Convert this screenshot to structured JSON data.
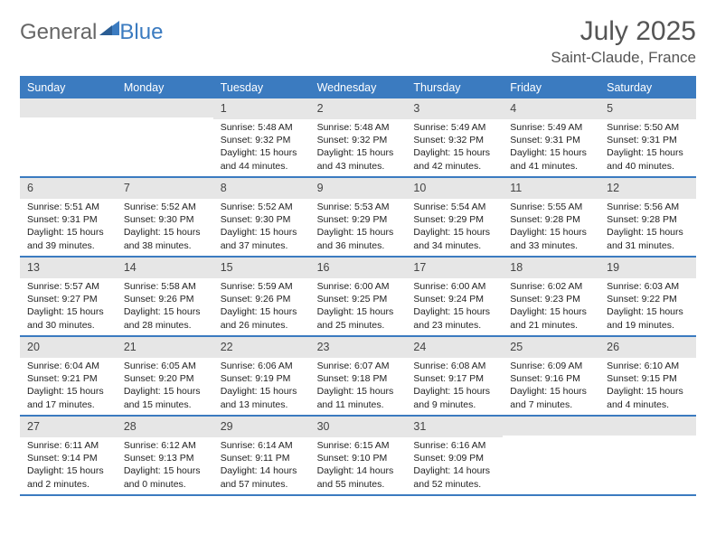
{
  "brand": {
    "word1": "General",
    "word2": "Blue"
  },
  "title": "July 2025",
  "location": "Saint-Claude, France",
  "header_bg": "#3b7bc0",
  "weekdays": [
    "Sunday",
    "Monday",
    "Tuesday",
    "Wednesday",
    "Thursday",
    "Friday",
    "Saturday"
  ],
  "weeks": [
    [
      {
        "n": "",
        "lines": [
          "",
          "",
          "",
          ""
        ]
      },
      {
        "n": "",
        "lines": [
          "",
          "",
          "",
          ""
        ]
      },
      {
        "n": "1",
        "lines": [
          "Sunrise: 5:48 AM",
          "Sunset: 9:32 PM",
          "Daylight: 15 hours",
          "and 44 minutes."
        ]
      },
      {
        "n": "2",
        "lines": [
          "Sunrise: 5:48 AM",
          "Sunset: 9:32 PM",
          "Daylight: 15 hours",
          "and 43 minutes."
        ]
      },
      {
        "n": "3",
        "lines": [
          "Sunrise: 5:49 AM",
          "Sunset: 9:32 PM",
          "Daylight: 15 hours",
          "and 42 minutes."
        ]
      },
      {
        "n": "4",
        "lines": [
          "Sunrise: 5:49 AM",
          "Sunset: 9:31 PM",
          "Daylight: 15 hours",
          "and 41 minutes."
        ]
      },
      {
        "n": "5",
        "lines": [
          "Sunrise: 5:50 AM",
          "Sunset: 9:31 PM",
          "Daylight: 15 hours",
          "and 40 minutes."
        ]
      }
    ],
    [
      {
        "n": "6",
        "lines": [
          "Sunrise: 5:51 AM",
          "Sunset: 9:31 PM",
          "Daylight: 15 hours",
          "and 39 minutes."
        ]
      },
      {
        "n": "7",
        "lines": [
          "Sunrise: 5:52 AM",
          "Sunset: 9:30 PM",
          "Daylight: 15 hours",
          "and 38 minutes."
        ]
      },
      {
        "n": "8",
        "lines": [
          "Sunrise: 5:52 AM",
          "Sunset: 9:30 PM",
          "Daylight: 15 hours",
          "and 37 minutes."
        ]
      },
      {
        "n": "9",
        "lines": [
          "Sunrise: 5:53 AM",
          "Sunset: 9:29 PM",
          "Daylight: 15 hours",
          "and 36 minutes."
        ]
      },
      {
        "n": "10",
        "lines": [
          "Sunrise: 5:54 AM",
          "Sunset: 9:29 PM",
          "Daylight: 15 hours",
          "and 34 minutes."
        ]
      },
      {
        "n": "11",
        "lines": [
          "Sunrise: 5:55 AM",
          "Sunset: 9:28 PM",
          "Daylight: 15 hours",
          "and 33 minutes."
        ]
      },
      {
        "n": "12",
        "lines": [
          "Sunrise: 5:56 AM",
          "Sunset: 9:28 PM",
          "Daylight: 15 hours",
          "and 31 minutes."
        ]
      }
    ],
    [
      {
        "n": "13",
        "lines": [
          "Sunrise: 5:57 AM",
          "Sunset: 9:27 PM",
          "Daylight: 15 hours",
          "and 30 minutes."
        ]
      },
      {
        "n": "14",
        "lines": [
          "Sunrise: 5:58 AM",
          "Sunset: 9:26 PM",
          "Daylight: 15 hours",
          "and 28 minutes."
        ]
      },
      {
        "n": "15",
        "lines": [
          "Sunrise: 5:59 AM",
          "Sunset: 9:26 PM",
          "Daylight: 15 hours",
          "and 26 minutes."
        ]
      },
      {
        "n": "16",
        "lines": [
          "Sunrise: 6:00 AM",
          "Sunset: 9:25 PM",
          "Daylight: 15 hours",
          "and 25 minutes."
        ]
      },
      {
        "n": "17",
        "lines": [
          "Sunrise: 6:00 AM",
          "Sunset: 9:24 PM",
          "Daylight: 15 hours",
          "and 23 minutes."
        ]
      },
      {
        "n": "18",
        "lines": [
          "Sunrise: 6:02 AM",
          "Sunset: 9:23 PM",
          "Daylight: 15 hours",
          "and 21 minutes."
        ]
      },
      {
        "n": "19",
        "lines": [
          "Sunrise: 6:03 AM",
          "Sunset: 9:22 PM",
          "Daylight: 15 hours",
          "and 19 minutes."
        ]
      }
    ],
    [
      {
        "n": "20",
        "lines": [
          "Sunrise: 6:04 AM",
          "Sunset: 9:21 PM",
          "Daylight: 15 hours",
          "and 17 minutes."
        ]
      },
      {
        "n": "21",
        "lines": [
          "Sunrise: 6:05 AM",
          "Sunset: 9:20 PM",
          "Daylight: 15 hours",
          "and 15 minutes."
        ]
      },
      {
        "n": "22",
        "lines": [
          "Sunrise: 6:06 AM",
          "Sunset: 9:19 PM",
          "Daylight: 15 hours",
          "and 13 minutes."
        ]
      },
      {
        "n": "23",
        "lines": [
          "Sunrise: 6:07 AM",
          "Sunset: 9:18 PM",
          "Daylight: 15 hours",
          "and 11 minutes."
        ]
      },
      {
        "n": "24",
        "lines": [
          "Sunrise: 6:08 AM",
          "Sunset: 9:17 PM",
          "Daylight: 15 hours",
          "and 9 minutes."
        ]
      },
      {
        "n": "25",
        "lines": [
          "Sunrise: 6:09 AM",
          "Sunset: 9:16 PM",
          "Daylight: 15 hours",
          "and 7 minutes."
        ]
      },
      {
        "n": "26",
        "lines": [
          "Sunrise: 6:10 AM",
          "Sunset: 9:15 PM",
          "Daylight: 15 hours",
          "and 4 minutes."
        ]
      }
    ],
    [
      {
        "n": "27",
        "lines": [
          "Sunrise: 6:11 AM",
          "Sunset: 9:14 PM",
          "Daylight: 15 hours",
          "and 2 minutes."
        ]
      },
      {
        "n": "28",
        "lines": [
          "Sunrise: 6:12 AM",
          "Sunset: 9:13 PM",
          "Daylight: 15 hours",
          "and 0 minutes."
        ]
      },
      {
        "n": "29",
        "lines": [
          "Sunrise: 6:14 AM",
          "Sunset: 9:11 PM",
          "Daylight: 14 hours",
          "and 57 minutes."
        ]
      },
      {
        "n": "30",
        "lines": [
          "Sunrise: 6:15 AM",
          "Sunset: 9:10 PM",
          "Daylight: 14 hours",
          "and 55 minutes."
        ]
      },
      {
        "n": "31",
        "lines": [
          "Sunrise: 6:16 AM",
          "Sunset: 9:09 PM",
          "Daylight: 14 hours",
          "and 52 minutes."
        ]
      },
      {
        "n": "",
        "lines": [
          "",
          "",
          "",
          ""
        ]
      },
      {
        "n": "",
        "lines": [
          "",
          "",
          "",
          ""
        ]
      }
    ]
  ]
}
